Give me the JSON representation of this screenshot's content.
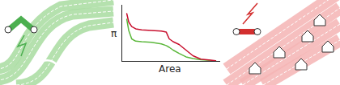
{
  "chart_data": {
    "type": "line",
    "x_label": "Area",
    "y_label": "π",
    "x": [
      5,
      7,
      10,
      14,
      20,
      30,
      40,
      45,
      48,
      52,
      58,
      65,
      72,
      80,
      90,
      95
    ],
    "series": [
      {
        "color": "#5cb83c",
        "values": [
          75,
          55,
          40,
          36,
          35,
          34,
          31,
          28,
          25,
          20,
          14,
          8,
          5,
          3,
          1.5,
          1
        ]
      },
      {
        "color": "#c8102e",
        "values": [
          85,
          70,
          62,
          58,
          56,
          55,
          54,
          52,
          40,
          35,
          30,
          20,
          10,
          4,
          2,
          1
        ]
      }
    ],
    "xlim": [
      0,
      100
    ],
    "ylim": [
      0,
      100
    ],
    "xticks": [],
    "yticks": [],
    "tick_labels": false
  }
}
